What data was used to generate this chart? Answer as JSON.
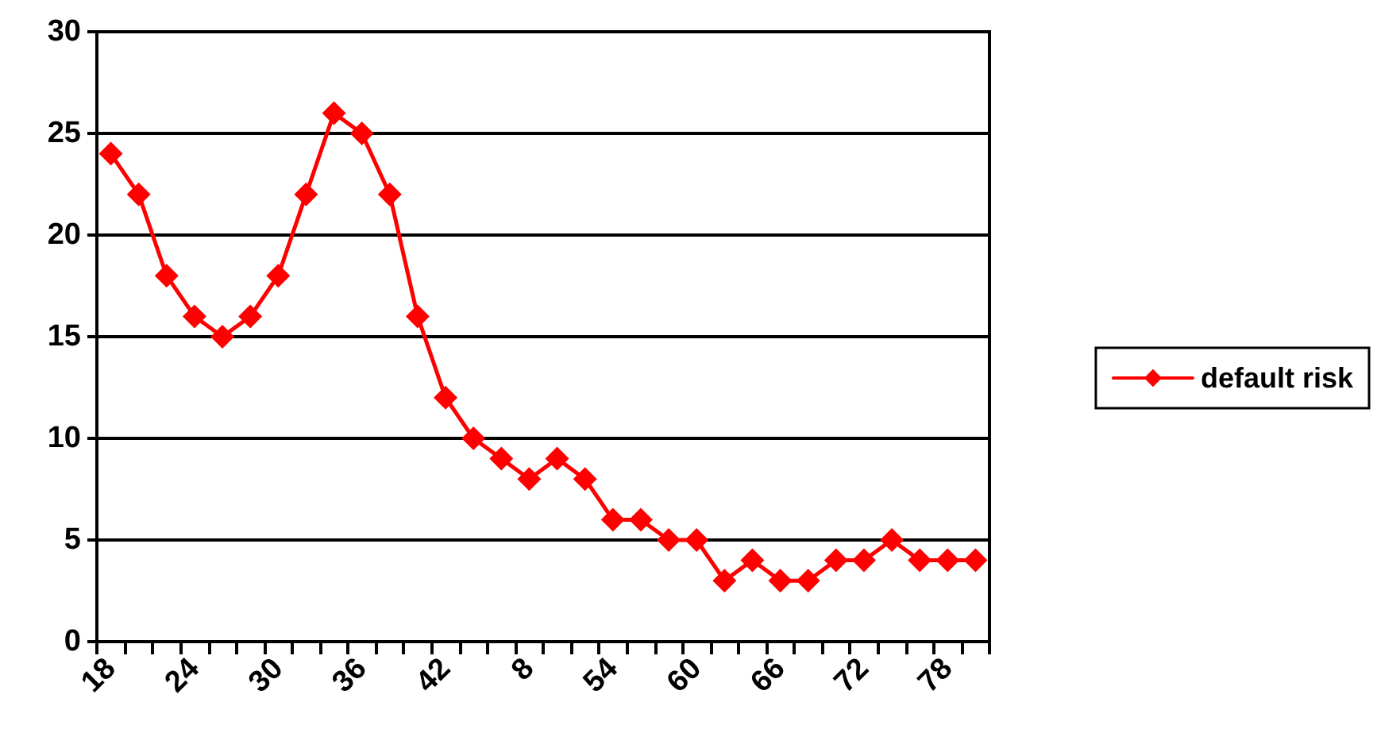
{
  "chart_data": {
    "type": "line",
    "categories": [
      "18",
      null,
      null,
      "24",
      null,
      null,
      "30",
      null,
      null,
      "36",
      null,
      null,
      "42",
      null,
      null,
      "8",
      null,
      null,
      "54",
      null,
      null,
      "60",
      null,
      null,
      "66",
      null,
      null,
      "72",
      null,
      null,
      "78",
      null
    ],
    "series": [
      {
        "name": "default risk",
        "color": "#ff0000",
        "values": [
          24,
          22,
          18,
          16,
          15,
          16,
          18,
          22,
          26,
          25,
          22,
          16,
          12,
          10,
          9,
          8,
          9,
          8,
          6,
          6,
          5,
          5,
          3,
          4,
          3,
          3,
          4,
          4,
          5,
          4,
          4,
          4
        ]
      }
    ],
    "ylim": [
      0,
      30
    ],
    "yticks": [
      0,
      5,
      10,
      15,
      20,
      25,
      30
    ],
    "grid": "y",
    "legend": "right",
    "marker": "diamond",
    "line_style": "solid"
  }
}
